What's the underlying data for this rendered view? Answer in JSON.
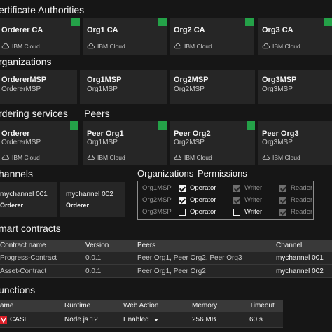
{
  "sections": {
    "ca": "ertificate Authorities",
    "orgs": "rganizations",
    "ordering": "rdering services",
    "peers": "Peers",
    "channels": "hannels",
    "org_perm_a": "Organizations",
    "org_perm_b": "Permissions",
    "contracts": "mart contracts",
    "functions": "unctions"
  },
  "cloud_label": "IBM Cloud",
  "ca_tiles": [
    {
      "name": "Orderer CA",
      "status": "ok"
    },
    {
      "name": "Org1 CA",
      "status": "ok"
    },
    {
      "name": "Org2 CA",
      "status": "ok"
    },
    {
      "name": "Org3 CA",
      "status": "ok"
    }
  ],
  "org_tiles": [
    {
      "title": "OrdererMSP",
      "sub": "OrdererMSP"
    },
    {
      "title": "Org1MSP",
      "sub": "Org1MSP"
    },
    {
      "title": "Org2MSP",
      "sub": "Org2MSP"
    },
    {
      "title": "Org3MSP",
      "sub": "Org3MSP"
    }
  ],
  "node_tiles": [
    {
      "title": "Orderer",
      "sub": "OrdererMSP"
    },
    {
      "title": "Peer Org1",
      "sub": "Org1MSP"
    },
    {
      "title": "Peer Org2",
      "sub": "Org2MSP"
    },
    {
      "title": "Peer Org3",
      "sub": "Org3MSP"
    }
  ],
  "channel_tiles": [
    {
      "name": "mychannel 001",
      "orderer": "Orderer"
    },
    {
      "name": "mychannel 002",
      "orderer": "Orderer"
    }
  ],
  "permissions": {
    "labels": {
      "operator": "Operator",
      "writer": "Writer",
      "reader": "Reader"
    },
    "rows": [
      {
        "msp": "Org1MSP",
        "operator": true,
        "writer": true,
        "reader": true
      },
      {
        "msp": "Org2MSP",
        "operator": true,
        "writer": true,
        "reader": true
      },
      {
        "msp": "Org3MSP",
        "operator": false,
        "writer": false,
        "reader": true
      }
    ]
  },
  "contracts_table": {
    "headers": {
      "name": "Contract name",
      "version": "Version",
      "peers": "Peers",
      "channel": "Channel"
    },
    "rows": [
      {
        "name": "Progress-Contract",
        "version": "0.0.1",
        "peers": "Peer Org1, Peer Org2, Peer Org3",
        "channel": "mychannel 001"
      },
      {
        "name": "Asset-Contract",
        "version": "0.0.1",
        "peers": "Peer Org1, Peer Org2",
        "channel": "mychannel 002"
      }
    ]
  },
  "functions_table": {
    "headers": {
      "name": "ame",
      "runtime": "Runtime",
      "action": "Web Action",
      "memory": "Memory",
      "timeout": "Timeout"
    },
    "rows": [
      {
        "name": "CASE",
        "runtime": "Node.js 12",
        "action": "Enabled",
        "memory": "256 MB",
        "timeout": "60 s"
      }
    ]
  },
  "colors": {
    "accent_green": "#24a148",
    "brand_red": "#da1e28"
  }
}
